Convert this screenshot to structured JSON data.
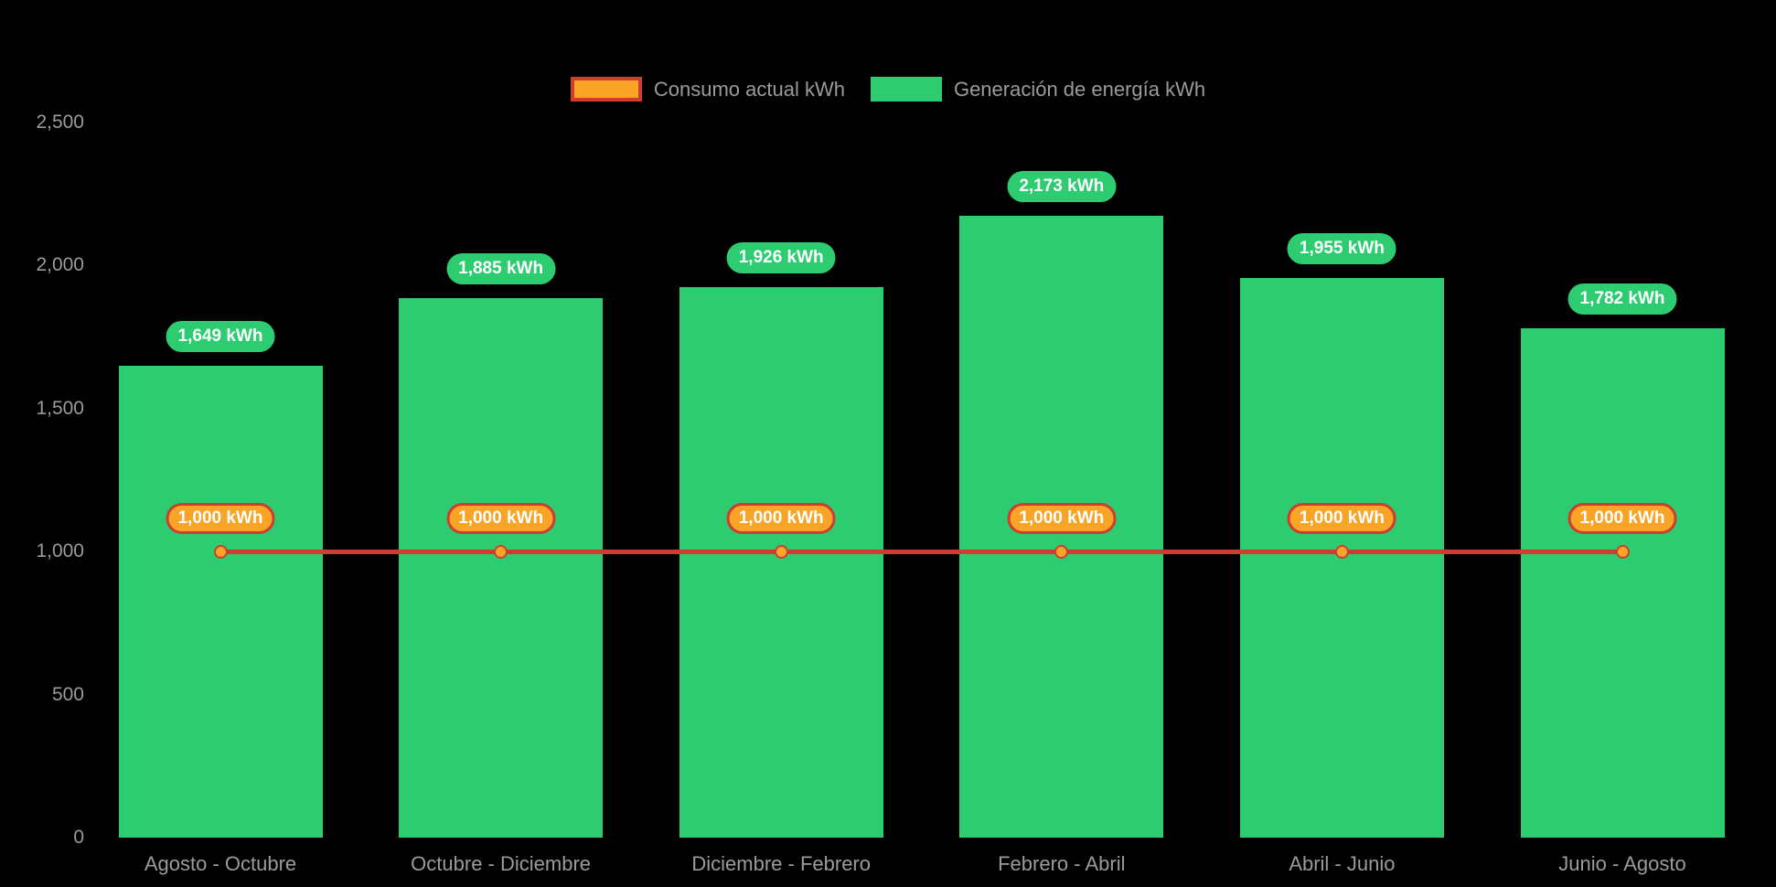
{
  "chart_data": {
    "type": "bar",
    "categories": [
      "Agosto - Octubre",
      "Octubre - Diciembre",
      "Diciembre - Febrero",
      "Febrero - Abril",
      "Abril - Junio",
      "Junio - Agosto"
    ],
    "series": [
      {
        "name": "Consumo actual kWh",
        "type": "line",
        "values": [
          1000,
          1000,
          1000,
          1000,
          1000,
          1000
        ],
        "point_labels": [
          "1,000 kWh",
          "1,000 kWh",
          "1,000 kWh",
          "1,000 kWh",
          "1,000 kWh",
          "1,000 kWh"
        ],
        "fill_color": "#f7a427",
        "stroke_color": "#cf3d30"
      },
      {
        "name": "Generación de energía kWh",
        "type": "bar",
        "values": [
          1649,
          1885,
          1926,
          2173,
          1955,
          1782
        ],
        "point_labels": [
          "1,649 kWh",
          "1,885 kWh",
          "1,926 kWh",
          "2,173 kWh",
          "1,955 kWh",
          "1,782 kWh"
        ],
        "fill_color": "#2ecc71"
      }
    ],
    "ylim": [
      0,
      2500
    ],
    "yticks": [
      {
        "value": 0,
        "label": "0"
      },
      {
        "value": 500,
        "label": "500"
      },
      {
        "value": 1000,
        "label": "1,000"
      },
      {
        "value": 1500,
        "label": "1,500"
      },
      {
        "value": 2000,
        "label": "2,000"
      },
      {
        "value": 2500,
        "label": "2,500"
      }
    ],
    "legend_position": "top",
    "grid": false,
    "background": "#000000",
    "axis_text_color": "#9b9b9b",
    "value_label_text_color": "#ffffff"
  }
}
